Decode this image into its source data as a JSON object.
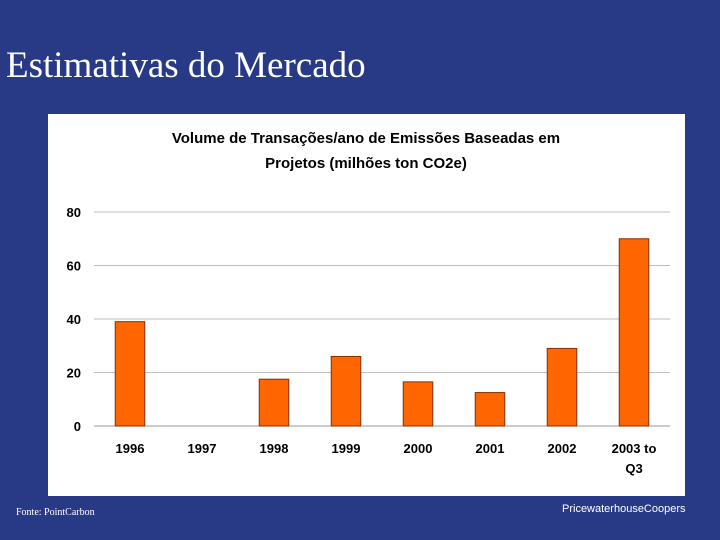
{
  "slide": {
    "title": "Estimativas do Mercado",
    "source": "Fonte: PointCarbon",
    "brand": "PricewaterhouseCoopers"
  },
  "colors": {
    "background": "#283A86",
    "panel": "#FFFFFF",
    "bar": "#FF6600",
    "bar_outline": "#8A2E00",
    "grid": "#BDBDBD"
  },
  "chart_data": {
    "type": "bar",
    "title_lines": [
      "Volume de Transações/ano de Emissões Baseadas em",
      "Projetos (milhões ton CO2e)"
    ],
    "categories": [
      [
        "1996"
      ],
      [
        "1997"
      ],
      [
        "1998"
      ],
      [
        "1999"
      ],
      [
        "2000"
      ],
      [
        "2001"
      ],
      [
        "2002"
      ],
      [
        "2003 to",
        "Q3"
      ]
    ],
    "values": [
      39,
      0,
      17.5,
      26,
      16.5,
      12.5,
      29,
      70
    ],
    "ylim": [
      0,
      80
    ],
    "yticks": [
      0,
      20,
      40,
      60,
      80
    ],
    "grid": true,
    "legend": false
  }
}
